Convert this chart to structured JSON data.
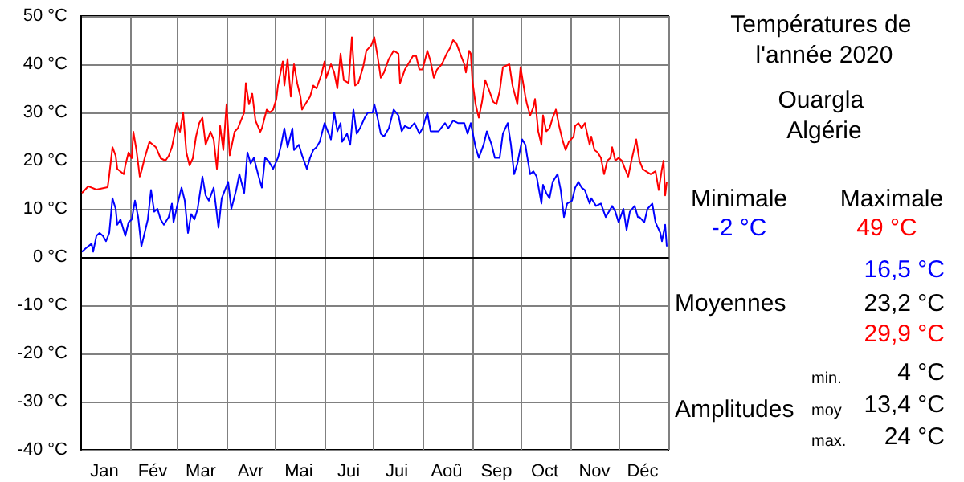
{
  "chart_data": {
    "type": "line",
    "title": "Températures de l'année 2020",
    "subtitle": "Ouargla Algérie",
    "xlim": [
      "2020-01-01",
      "2021-01-01"
    ],
    "xticks": [
      {
        "value": "2020-01-01",
        "label": null
      },
      {
        "value": "2020-01-16",
        "label": "Jan"
      },
      {
        "value": "2020-02-01",
        "label": null
      },
      {
        "value": "2020-02-15",
        "label": "Fév"
      },
      {
        "value": "2020-03-01",
        "label": null
      },
      {
        "value": "2020-03-16",
        "label": "Mar"
      },
      {
        "value": "2020-04-01",
        "label": null
      },
      {
        "value": "2020-04-16",
        "label": "Avr"
      },
      {
        "value": "2020-05-01",
        "label": null
      },
      {
        "value": "2020-05-16",
        "label": "Mai"
      },
      {
        "value": "2020-06-01",
        "label": null
      },
      {
        "value": "2020-06-16",
        "label": "Jui"
      },
      {
        "value": "2020-07-01",
        "label": null
      },
      {
        "value": "2020-07-16",
        "label": "Jui"
      },
      {
        "value": "2020-08-01",
        "label": null
      },
      {
        "value": "2020-08-16",
        "label": "Aoû"
      },
      {
        "value": "2020-09-01",
        "label": null
      },
      {
        "value": "2020-09-16",
        "label": "Sep"
      },
      {
        "value": "2020-10-01",
        "label": null
      },
      {
        "value": "2020-10-16",
        "label": "Oct"
      },
      {
        "value": "2020-11-01",
        "label": null
      },
      {
        "value": "2020-11-16",
        "label": "Nov"
      },
      {
        "value": "2020-12-01",
        "label": null
      },
      {
        "value": "2020-12-16",
        "label": "Déc"
      },
      {
        "value": "2021-01-01",
        "label": null
      }
    ],
    "ylim": [
      -40,
      50
    ],
    "yticks": [
      {
        "value": -40,
        "label": "-40 °C"
      },
      {
        "value": -30,
        "label": "-30 °C"
      },
      {
        "value": -20,
        "label": "-20 °C"
      },
      {
        "value": -10,
        "label": "-10 °C"
      },
      {
        "value": 0,
        "label": "0 °C"
      },
      {
        "value": 10,
        "label": "10 °C"
      },
      {
        "value": 20,
        "label": "20 °C"
      },
      {
        "value": 30,
        "label": "30 °C"
      },
      {
        "value": 40,
        "label": "40 °C"
      },
      {
        "value": 50,
        "label": "50 °C"
      }
    ],
    "grid": true,
    "marker": "none",
    "line_style": "solid",
    "annotations": [
      "Minimale",
      "Maximale",
      "-2 °C",
      "49 °C",
      "16,5 °C",
      "Moyennes",
      "23,2 °C",
      "29,9 °C",
      "min.",
      "4 °C",
      "Amplitudes",
      "moy",
      "13,4 °C",
      "max.",
      "24 °C"
    ],
    "series": [
      {
        "color": "#0000ff",
        "x": [
          "2020-01-02",
          "2020-01-04",
          "2020-01-08",
          "2020-01-09",
          "2020-01-11",
          "2020-01-13",
          "2020-01-15",
          "2020-01-17",
          "2020-01-19",
          "2020-01-21",
          "2020-01-23",
          "2020-01-24",
          "2020-01-26",
          "2020-01-29",
          "2020-01-31",
          "2020-02-02",
          "2020-02-04",
          "2020-02-06",
          "2020-02-08",
          "2020-02-10",
          "2020-02-12",
          "2020-02-14",
          "2020-02-16",
          "2020-02-18",
          "2020-02-20",
          "2020-02-22",
          "2020-02-25",
          "2020-02-27",
          "2020-02-28",
          "2020-03-02",
          "2020-03-04",
          "2020-03-06",
          "2020-03-08",
          "2020-03-10",
          "2020-03-12",
          "2020-03-14",
          "2020-03-17",
          "2020-03-19",
          "2020-03-21",
          "2020-03-24",
          "2020-03-27",
          "2020-03-29",
          "2020-04-02",
          "2020-04-04",
          "2020-04-07",
          "2020-04-09",
          "2020-04-12",
          "2020-04-14",
          "2020-04-16",
          "2020-04-18",
          "2020-04-21",
          "2020-04-23",
          "2020-04-25",
          "2020-04-27",
          "2020-04-30",
          "2020-05-03",
          "2020-05-05",
          "2020-05-07",
          "2020-05-09",
          "2020-05-12",
          "2020-05-13",
          "2020-05-16",
          "2020-05-18",
          "2020-05-21",
          "2020-05-23",
          "2020-05-25",
          "2020-05-27",
          "2020-05-29",
          "2020-06-01",
          "2020-06-03",
          "2020-06-05",
          "2020-06-07",
          "2020-06-09",
          "2020-06-11",
          "2020-06-12",
          "2020-06-15",
          "2020-06-17",
          "2020-06-19",
          "2020-06-21",
          "2020-06-23",
          "2020-06-26",
          "2020-06-28",
          "2020-07-01",
          "2020-07-02",
          "2020-07-04",
          "2020-07-06",
          "2020-07-08",
          "2020-07-11",
          "2020-07-14",
          "2020-07-17",
          "2020-07-19",
          "2020-07-21",
          "2020-07-24",
          "2020-07-27",
          "2020-07-30",
          "2020-08-01",
          "2020-08-04",
          "2020-08-06",
          "2020-08-11",
          "2020-08-15",
          "2020-08-17",
          "2020-08-20",
          "2020-08-23",
          "2020-08-27",
          "2020-08-29",
          "2020-08-31",
          "2020-09-03",
          "2020-09-05",
          "2020-09-08",
          "2020-09-10",
          "2020-09-13",
          "2020-09-15",
          "2020-09-18",
          "2020-09-20",
          "2020-09-23",
          "2020-09-25",
          "2020-09-27",
          "2020-09-29",
          "2020-09-30",
          "2020-10-02",
          "2020-10-04",
          "2020-10-05",
          "2020-10-07",
          "2020-10-09",
          "2020-10-11",
          "2020-10-14",
          "2020-10-15",
          "2020-10-17",
          "2020-10-19",
          "2020-10-21",
          "2020-10-24",
          "2020-10-26",
          "2020-10-28",
          "2020-10-30",
          "2020-11-02",
          "2020-11-04",
          "2020-11-06",
          "2020-11-08",
          "2020-11-10",
          "2020-11-13",
          "2020-11-14",
          "2020-11-17",
          "2020-11-20",
          "2020-11-23",
          "2020-11-25",
          "2020-11-27",
          "2020-11-29",
          "2020-12-01",
          "2020-12-04",
          "2020-12-06",
          "2020-12-08",
          "2020-12-11",
          "2020-12-13",
          "2020-12-14",
          "2020-12-17",
          "2020-12-19",
          "2020-12-22",
          "2020-12-24",
          "2020-12-27",
          "2020-12-28",
          "2020-12-30",
          "2020-12-31"
        ],
        "values": [
          1.1,
          1.7,
          2.8,
          1.1,
          4.4,
          5,
          4.4,
          3.3,
          5,
          12.2,
          10,
          6.7,
          7.8,
          4.4,
          7.2,
          7.8,
          11.7,
          8.3,
          2.2,
          5,
          7.8,
          13.9,
          9.4,
          10,
          7.8,
          6.7,
          8.3,
          11.1,
          7.2,
          11.7,
          14.4,
          11.7,
          5,
          8.9,
          7.8,
          10,
          16.7,
          12.8,
          11.7,
          14.4,
          6.1,
          12.2,
          15.6,
          10,
          13.9,
          17.2,
          13.3,
          21.7,
          19.4,
          20.6,
          16.7,
          14.4,
          20.6,
          20,
          18.3,
          20.6,
          23.3,
          26.7,
          22.8,
          26.7,
          22.2,
          23.3,
          21.1,
          18.3,
          20.6,
          22.2,
          22.8,
          23.9,
          27.8,
          26.1,
          24.4,
          30,
          26.1,
          27.8,
          23.9,
          25.6,
          23.3,
          30.6,
          25.6,
          26.7,
          28.9,
          30,
          30,
          31.7,
          28.9,
          25.6,
          25,
          26.7,
          30.6,
          29.4,
          26.1,
          27.2,
          26.7,
          27.8,
          25.6,
          26.7,
          30,
          26.1,
          26.1,
          27.8,
          26.7,
          28.3,
          27.8,
          27.8,
          25.6,
          27.8,
          22.8,
          20.6,
          23.3,
          26.1,
          23.3,
          20.6,
          20.6,
          25.6,
          27.8,
          23.3,
          17.2,
          19.4,
          21.1,
          24.4,
          23.3,
          21.1,
          17.2,
          17.8,
          16.7,
          11.1,
          15,
          13.3,
          12.2,
          15.6,
          17.2,
          13.9,
          8.3,
          11.1,
          11.7,
          14.4,
          15.6,
          14.4,
          13.9,
          11.1,
          12.2,
          10.6,
          11.1,
          8.3,
          9.4,
          10.6,
          9.4,
          7.2,
          10,
          5.6,
          9.4,
          10.6,
          8.3,
          8.3,
          7.2,
          10,
          11.1,
          7.2,
          5,
          3.3,
          6.7,
          2.2
        ]
      },
      {
        "color": "#ff0000",
        "x": [
          "2020-01-02",
          "2020-01-06",
          "2020-01-11",
          "2020-01-18",
          "2020-01-19",
          "2020-01-21",
          "2020-01-23",
          "2020-01-24",
          "2020-01-28",
          "2020-01-29",
          "2020-01-31",
          "2020-02-02",
          "2020-02-03",
          "2020-02-05",
          "2020-02-07",
          "2020-02-08",
          "2020-02-10",
          "2020-02-13",
          "2020-02-17",
          "2020-02-20",
          "2020-02-23",
          "2020-02-25",
          "2020-02-27",
          "2020-03-01",
          "2020-03-03",
          "2020-03-05",
          "2020-03-07",
          "2020-03-09",
          "2020-03-11",
          "2020-03-13",
          "2020-03-15",
          "2020-03-17",
          "2020-03-19",
          "2020-03-22",
          "2020-03-24",
          "2020-03-26",
          "2020-03-28",
          "2020-03-30",
          "2020-04-01",
          "2020-04-03",
          "2020-04-06",
          "2020-04-08",
          "2020-04-12",
          "2020-04-13",
          "2020-04-15",
          "2020-04-17",
          "2020-04-19",
          "2020-04-22",
          "2020-04-23",
          "2020-04-26",
          "2020-04-28",
          "2020-04-30",
          "2020-05-02",
          "2020-05-03",
          "2020-05-06",
          "2020-05-07",
          "2020-05-09",
          "2020-05-11",
          "2020-05-13",
          "2020-05-15",
          "2020-05-17",
          "2020-05-18",
          "2020-05-20",
          "2020-05-23",
          "2020-05-25",
          "2020-05-27",
          "2020-05-30",
          "2020-06-01",
          "2020-06-02",
          "2020-06-05",
          "2020-06-07",
          "2020-06-09",
          "2020-06-11",
          "2020-06-13",
          "2020-06-16",
          "2020-06-18",
          "2020-06-20",
          "2020-06-22",
          "2020-06-25",
          "2020-06-27",
          "2020-06-30",
          "2020-07-02",
          "2020-07-04",
          "2020-07-06",
          "2020-07-08",
          "2020-07-11",
          "2020-07-14",
          "2020-07-17",
          "2020-07-18",
          "2020-07-21",
          "2020-07-23",
          "2020-07-26",
          "2020-07-28",
          "2020-07-30",
          "2020-08-01",
          "2020-08-04",
          "2020-08-06",
          "2020-08-08",
          "2020-08-10",
          "2020-08-13",
          "2020-08-16",
          "2020-08-18",
          "2020-08-20",
          "2020-08-22",
          "2020-08-25",
          "2020-08-27",
          "2020-08-28",
          "2020-08-30",
          "2020-08-31",
          "2020-09-01",
          "2020-09-03",
          "2020-09-05",
          "2020-09-07",
          "2020-09-09",
          "2020-09-11",
          "2020-09-14",
          "2020-09-16",
          "2020-09-18",
          "2020-09-20",
          "2020-09-24",
          "2020-09-26",
          "2020-09-29",
          "2020-10-01",
          "2020-10-04",
          "2020-10-05",
          "2020-10-07",
          "2020-10-09",
          "2020-10-10",
          "2020-10-12",
          "2020-10-14",
          "2020-10-15",
          "2020-10-17",
          "2020-10-19",
          "2020-10-21",
          "2020-10-23",
          "2020-10-25",
          "2020-10-27",
          "2020-10-29",
          "2020-10-31",
          "2020-11-03",
          "2020-11-04",
          "2020-11-06",
          "2020-11-08",
          "2020-11-10",
          "2020-11-13",
          "2020-11-14",
          "2020-11-16",
          "2020-11-18",
          "2020-11-20",
          "2020-11-22",
          "2020-11-24",
          "2020-11-26",
          "2020-11-27",
          "2020-11-29",
          "2020-12-01",
          "2020-12-03",
          "2020-12-05",
          "2020-12-07",
          "2020-12-09",
          "2020-12-12",
          "2020-12-14",
          "2020-12-16",
          "2020-12-18",
          "2020-12-21",
          "2020-12-24",
          "2020-12-26",
          "2020-12-28",
          "2020-12-29",
          "2020-12-30",
          "2020-12-31"
        ],
        "values": [
          13.3,
          14.7,
          14,
          14.5,
          17,
          22.8,
          21,
          18.3,
          17.2,
          19,
          21.7,
          20.5,
          26,
          22,
          16.7,
          17.8,
          20.5,
          23.9,
          22.8,
          20.5,
          20,
          21,
          22.8,
          27.8,
          26,
          30,
          21.7,
          19,
          20.5,
          25,
          27.8,
          28.9,
          23.3,
          26,
          24.4,
          18.3,
          27.2,
          22.2,
          31.7,
          21.1,
          26,
          26.7,
          30,
          36.1,
          31.7,
          33.9,
          28.3,
          26,
          26.7,
          30.6,
          30,
          30.6,
          32.8,
          35.6,
          40.6,
          35.6,
          41.1,
          33.3,
          40,
          36.1,
          33.3,
          30.6,
          31.7,
          33.3,
          35.6,
          35,
          37.8,
          40.6,
          37.2,
          40,
          38.3,
          35,
          42.2,
          36.7,
          36.1,
          45.6,
          35.6,
          36.1,
          39.4,
          42.8,
          43.9,
          45.6,
          41.7,
          37.2,
          38.3,
          41.1,
          42.8,
          42.2,
          36.1,
          38.9,
          40,
          41.7,
          41.7,
          38.9,
          38.9,
          42.8,
          40.6,
          37.2,
          38.9,
          40,
          42.2,
          43.3,
          45,
          44.4,
          41.7,
          40,
          38.3,
          42.8,
          42.2,
          36.7,
          31.7,
          28.9,
          32.2,
          36.7,
          35,
          32.2,
          31.7,
          34.4,
          39.4,
          40,
          35.6,
          31.7,
          39.4,
          33.3,
          31.7,
          29.4,
          31.1,
          32.8,
          26.1,
          23.3,
          29.4,
          26.1,
          26.7,
          28.9,
          30.6,
          27.2,
          24.4,
          22.2,
          23.9,
          25,
          27.2,
          27.8,
          26.7,
          27.8,
          23.3,
          25,
          22.2,
          21.7,
          20.6,
          17.2,
          20,
          20.6,
          22.8,
          20,
          20.6,
          20,
          18.3,
          16.7,
          20,
          24.4,
          20,
          18.3,
          17.8,
          17.2,
          17.8,
          13.9,
          18.3,
          20,
          12.8,
          15.6
        ]
      }
    ]
  }
}
